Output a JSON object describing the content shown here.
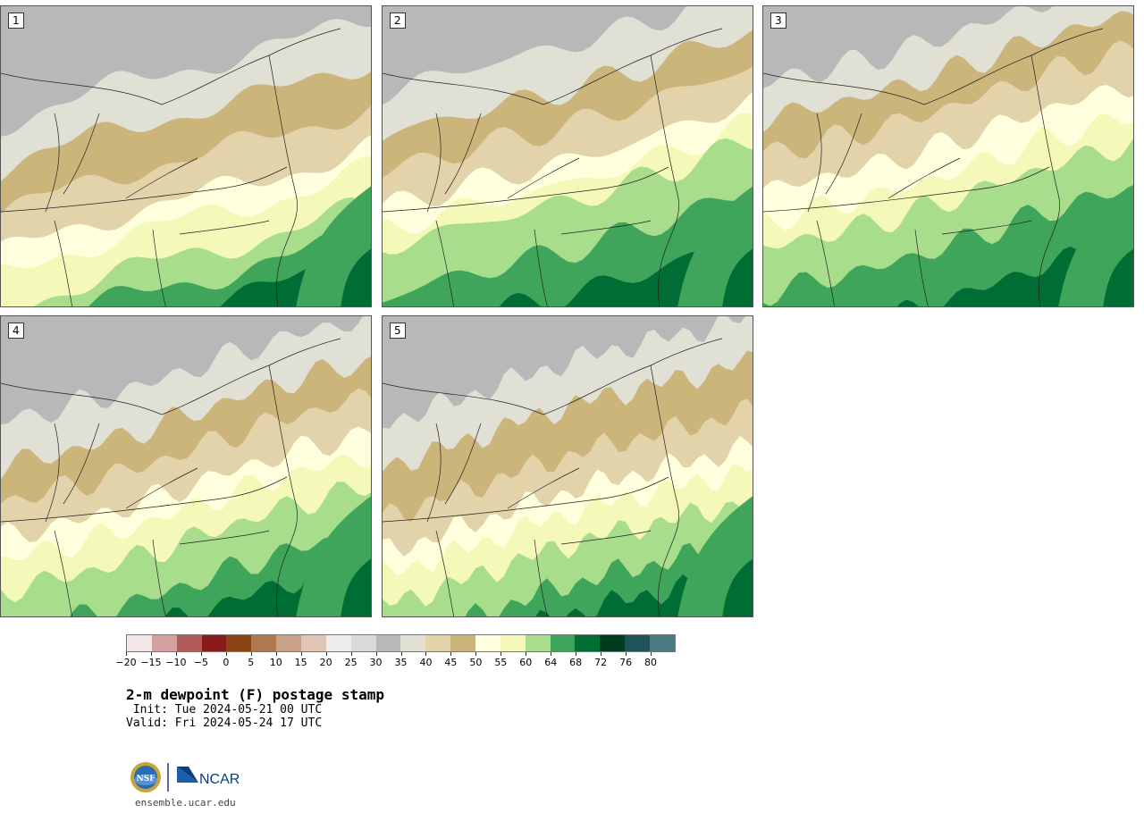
{
  "panels": [
    {
      "label": "1"
    },
    {
      "label": "2"
    },
    {
      "label": "3"
    },
    {
      "label": "4"
    },
    {
      "label": "5"
    }
  ],
  "colorbar": {
    "colors": [
      "#f2e6e6",
      "#d4a0a0",
      "#b05a5a",
      "#8b1a1a",
      "#8b4513",
      "#b07850",
      "#c9a088",
      "#e0c4b4",
      "#ececec",
      "#d9d9d9",
      "#b8b8b8",
      "#e0e0d5",
      "#e2d3aa",
      "#cbb57a",
      "#fffedd",
      "#f4f8b8",
      "#a8dd8c",
      "#3fa55a",
      "#006d35",
      "#003d20",
      "#1e5456",
      "#4d7a80"
    ],
    "ticks": [
      "−20",
      "−15",
      "−10",
      "−5",
      "0",
      "5",
      "10",
      "15",
      "20",
      "25",
      "30",
      "35",
      "40",
      "45",
      "50",
      "55",
      "60",
      "64",
      "68",
      "72",
      "76",
      "80"
    ]
  },
  "title": "2-m dewpoint (F) postage stamp",
  "init": " Init: Tue 2024-05-21 00 UTC",
  "valid": "Valid: Fri 2024-05-24 17 UTC",
  "logos": {
    "nsf": "NSF",
    "ncar": "NCAR"
  },
  "url": "ensemble.ucar.edu"
}
